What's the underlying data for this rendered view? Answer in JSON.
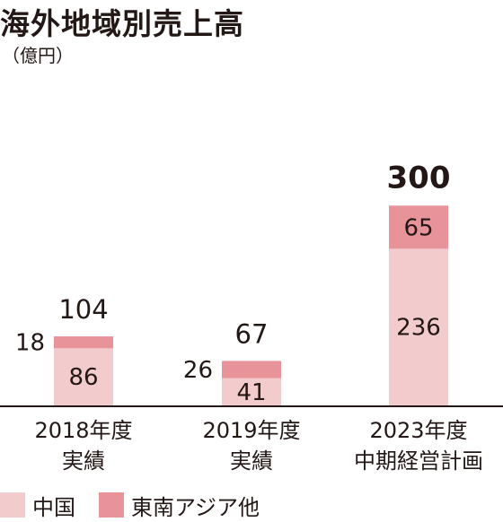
{
  "header": {
    "title": "海外地域別売上高",
    "unit": "（億円）"
  },
  "colors": {
    "china": "#f2cccc",
    "sea": "#e8939a",
    "axis": "#231815",
    "text": "#231815"
  },
  "chart_data": {
    "type": "bar",
    "stacked": true,
    "categories": [
      [
        "2018年度",
        "実績"
      ],
      [
        "2019年度",
        "実績"
      ],
      [
        "2023年度",
        "中期経営計画"
      ]
    ],
    "series": [
      {
        "name": "中国",
        "values": [
          86,
          41,
          236
        ]
      },
      {
        "name": "東南アジア他",
        "values": [
          18,
          26,
          65
        ]
      }
    ],
    "totals": [
      "104",
      "67",
      "300"
    ],
    "title": "海外地域別売上高",
    "ylabel": "（億円）",
    "ylim": [
      0,
      300
    ],
    "grid": false,
    "legend": "bottom-left"
  }
}
